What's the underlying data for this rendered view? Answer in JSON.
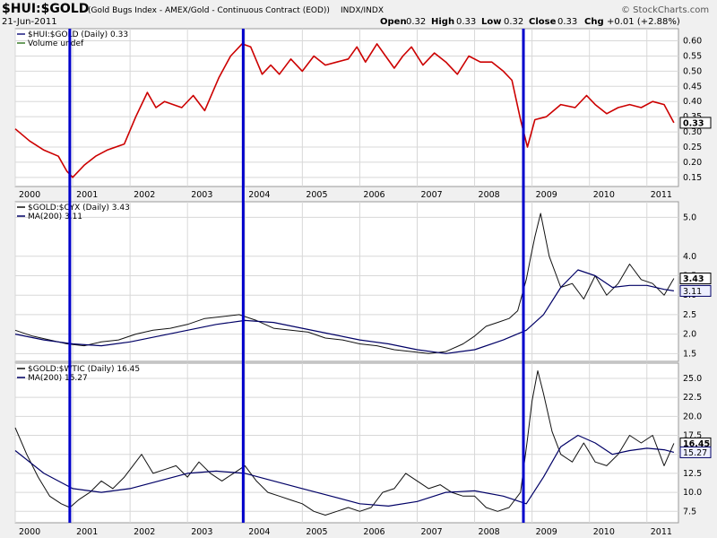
{
  "header": {
    "symbol": "$HUI:$GOLD",
    "description": "(Gold Bugs Index - AMEX/Gold - Continuous Contract (EOD))",
    "exchange": "INDX/INDX",
    "date": "21-Jun-2011",
    "watermark": "© StockCharts.com",
    "ohlc": {
      "open_label": "Open",
      "open": "0.32",
      "high_label": "High",
      "high": "0.33",
      "low_label": "Low",
      "low": "0.32",
      "close_label": "Close",
      "close": "0.33",
      "chg_label": "Chg",
      "chg": "+0.01 (+2.88%)"
    }
  },
  "x_axis_labels": [
    "2000",
    "2001",
    "2002",
    "2003",
    "2004",
    "2005",
    "2006",
    "2007",
    "2008",
    "2009",
    "2010",
    "2011"
  ],
  "highlight_lines_dates": [
    2000.95,
    2003.97,
    2008.85
  ],
  "colors": {
    "price_line": "#cc0000",
    "price_line_alt": "#1a1a80",
    "ma_line": "#000066",
    "marker_lines": "#0000cc",
    "grid": "#d8d8d8",
    "panel_bg": "#ffffff"
  },
  "chart_data": [
    {
      "type": "line",
      "panel": "top",
      "legend": [
        "$HUI:$GOLD (Daily) 0.33",
        "Volume undef"
      ],
      "ylim": [
        0.12,
        0.64
      ],
      "yticks": [
        0.15,
        0.2,
        0.25,
        0.3,
        0.35,
        0.4,
        0.45,
        0.5,
        0.55,
        0.6
      ],
      "ytick_labels": [
        "0.15",
        "0.20",
        "0.25",
        "0.30",
        "0.35",
        "0.40",
        "0.45",
        "0.50",
        "0.55",
        "0.60"
      ],
      "last_value_label": "0.33",
      "series": [
        {
          "name": "$HUI:$GOLD",
          "x": [
            2000.0,
            2000.25,
            2000.5,
            2000.75,
            2000.9,
            2001.0,
            2001.2,
            2001.4,
            2001.6,
            2001.9,
            2002.1,
            2002.3,
            2002.45,
            2002.6,
            2002.9,
            2003.1,
            2003.3,
            2003.55,
            2003.75,
            2003.95,
            2004.1,
            2004.3,
            2004.45,
            2004.6,
            2004.8,
            2005.0,
            2005.2,
            2005.4,
            2005.6,
            2005.8,
            2005.95,
            2006.1,
            2006.3,
            2006.45,
            2006.6,
            2006.75,
            2006.9,
            2007.1,
            2007.3,
            2007.5,
            2007.7,
            2007.9,
            2008.1,
            2008.3,
            2008.5,
            2008.65,
            2008.8,
            2008.92,
            2009.05,
            2009.25,
            2009.5,
            2009.75,
            2009.95,
            2010.1,
            2010.3,
            2010.5,
            2010.7,
            2010.9,
            2011.1,
            2011.3,
            2011.47
          ],
          "values": [
            0.31,
            0.27,
            0.24,
            0.22,
            0.17,
            0.15,
            0.19,
            0.22,
            0.24,
            0.26,
            0.35,
            0.43,
            0.38,
            0.4,
            0.38,
            0.42,
            0.37,
            0.48,
            0.55,
            0.59,
            0.58,
            0.49,
            0.52,
            0.49,
            0.54,
            0.5,
            0.55,
            0.52,
            0.53,
            0.54,
            0.58,
            0.53,
            0.59,
            0.55,
            0.51,
            0.55,
            0.58,
            0.52,
            0.56,
            0.53,
            0.49,
            0.55,
            0.53,
            0.53,
            0.5,
            0.47,
            0.34,
            0.25,
            0.34,
            0.35,
            0.39,
            0.38,
            0.42,
            0.39,
            0.36,
            0.38,
            0.39,
            0.38,
            0.4,
            0.39,
            0.33
          ]
        }
      ]
    },
    {
      "type": "line",
      "panel": "middle",
      "legend": [
        "$GOLD:$CYX (Daily) 3.43",
        "MA(200) 3.11"
      ],
      "ylim": [
        1.3,
        5.4
      ],
      "yticks": [
        1.5,
        2.0,
        2.5,
        3.0,
        3.5,
        4.0,
        5.0
      ],
      "ytick_labels": [
        "1.5",
        "2.0",
        "2.5",
        "3.0",
        "3.5",
        "4.0",
        "5.0"
      ],
      "last_value_labels": [
        "3.43",
        "3.11"
      ],
      "series": [
        {
          "name": "$GOLD:$CYX",
          "x": [
            2000.0,
            2000.3,
            2000.6,
            2000.9,
            2001.2,
            2001.5,
            2001.8,
            2002.1,
            2002.4,
            2002.7,
            2003.0,
            2003.3,
            2003.6,
            2003.9,
            2004.2,
            2004.5,
            2004.8,
            2005.1,
            2005.4,
            2005.7,
            2006.0,
            2006.3,
            2006.6,
            2006.9,
            2007.2,
            2007.5,
            2007.8,
            2008.0,
            2008.2,
            2008.4,
            2008.6,
            2008.75,
            2008.9,
            2008.98,
            2009.05,
            2009.15,
            2009.3,
            2009.5,
            2009.7,
            2009.9,
            2010.1,
            2010.3,
            2010.5,
            2010.7,
            2010.9,
            2011.1,
            2011.3,
            2011.47
          ],
          "values": [
            2.1,
            1.95,
            1.85,
            1.75,
            1.7,
            1.8,
            1.85,
            2.0,
            2.1,
            2.15,
            2.25,
            2.4,
            2.45,
            2.5,
            2.35,
            2.15,
            2.1,
            2.05,
            1.9,
            1.85,
            1.75,
            1.7,
            1.6,
            1.55,
            1.5,
            1.55,
            1.75,
            1.95,
            2.2,
            2.3,
            2.4,
            2.6,
            3.4,
            4.0,
            4.5,
            5.1,
            4.0,
            3.2,
            3.3,
            2.9,
            3.5,
            3.0,
            3.3,
            3.8,
            3.4,
            3.3,
            3.0,
            3.43
          ]
        },
        {
          "name": "MA(200)",
          "x": [
            2000.0,
            2000.5,
            2001.0,
            2001.5,
            2002.0,
            2002.5,
            2003.0,
            2003.5,
            2004.0,
            2004.5,
            2005.0,
            2005.5,
            2006.0,
            2006.5,
            2007.0,
            2007.5,
            2008.0,
            2008.5,
            2008.9,
            2009.2,
            2009.5,
            2009.8,
            2010.1,
            2010.4,
            2010.7,
            2011.0,
            2011.3,
            2011.47
          ],
          "values": [
            2.0,
            1.85,
            1.75,
            1.7,
            1.8,
            1.95,
            2.1,
            2.25,
            2.35,
            2.3,
            2.15,
            2.0,
            1.85,
            1.75,
            1.6,
            1.5,
            1.6,
            1.85,
            2.1,
            2.5,
            3.2,
            3.65,
            3.5,
            3.2,
            3.25,
            3.25,
            3.15,
            3.11
          ]
        }
      ]
    },
    {
      "type": "line",
      "panel": "bottom",
      "legend": [
        "$GOLD:$WTIC (Daily) 16.45",
        "MA(200) 15.27"
      ],
      "ylim": [
        6.0,
        27.0
      ],
      "yticks": [
        7.5,
        10.0,
        12.5,
        15.0,
        17.5,
        20.0,
        22.5,
        25.0
      ],
      "ytick_labels": [
        "7.5",
        "10.0",
        "12.5",
        "15.0",
        "17.5",
        "20.0",
        "22.5",
        "25.0"
      ],
      "last_value_labels": [
        "16.45",
        "15.27"
      ],
      "series": [
        {
          "name": "$GOLD:$WTIC",
          "x": [
            2000.0,
            2000.2,
            2000.4,
            2000.6,
            2000.8,
            2000.95,
            2001.1,
            2001.3,
            2001.5,
            2001.7,
            2001.9,
            2002.0,
            2002.2,
            2002.4,
            2002.6,
            2002.8,
            2003.0,
            2003.2,
            2003.4,
            2003.6,
            2003.8,
            2004.0,
            2004.2,
            2004.4,
            2004.6,
            2004.8,
            2005.0,
            2005.2,
            2005.4,
            2005.6,
            2005.8,
            2006.0,
            2006.2,
            2006.4,
            2006.6,
            2006.8,
            2007.0,
            2007.2,
            2007.4,
            2007.6,
            2007.8,
            2008.0,
            2008.2,
            2008.4,
            2008.6,
            2008.8,
            2008.92,
            2009.0,
            2009.1,
            2009.2,
            2009.35,
            2009.5,
            2009.7,
            2009.9,
            2010.1,
            2010.3,
            2010.5,
            2010.7,
            2010.9,
            2011.1,
            2011.3,
            2011.47
          ],
          "values": [
            18.5,
            15.0,
            12.0,
            9.5,
            8.5,
            8.0,
            9.0,
            10.0,
            11.5,
            10.5,
            12.0,
            13.0,
            15.0,
            12.5,
            13.0,
            13.5,
            12.0,
            14.0,
            12.5,
            11.5,
            12.5,
            13.5,
            11.5,
            10.0,
            9.5,
            9.0,
            8.5,
            7.5,
            7.0,
            7.5,
            8.0,
            7.5,
            8.0,
            10.0,
            10.5,
            12.5,
            11.5,
            10.5,
            11.0,
            10.0,
            9.5,
            9.5,
            8.0,
            7.5,
            8.0,
            10.0,
            17.0,
            22.0,
            26.0,
            23.0,
            18.0,
            15.0,
            14.0,
            16.5,
            14.0,
            13.5,
            15.0,
            17.5,
            16.5,
            17.5,
            13.5,
            16.45
          ]
        },
        {
          "name": "MA(200)",
          "x": [
            2000.0,
            2000.5,
            2001.0,
            2001.5,
            2002.0,
            2002.5,
            2003.0,
            2003.5,
            2004.0,
            2004.5,
            2005.0,
            2005.5,
            2006.0,
            2006.5,
            2007.0,
            2007.5,
            2008.0,
            2008.5,
            2008.9,
            2009.2,
            2009.5,
            2009.8,
            2010.1,
            2010.4,
            2010.7,
            2011.0,
            2011.3,
            2011.47
          ],
          "values": [
            15.5,
            12.5,
            10.5,
            10.0,
            10.5,
            11.5,
            12.5,
            12.8,
            12.5,
            11.5,
            10.5,
            9.5,
            8.5,
            8.2,
            8.8,
            10.0,
            10.2,
            9.5,
            8.5,
            12.0,
            16.0,
            17.5,
            16.5,
            15.0,
            15.5,
            15.8,
            15.6,
            15.27
          ]
        }
      ]
    }
  ]
}
